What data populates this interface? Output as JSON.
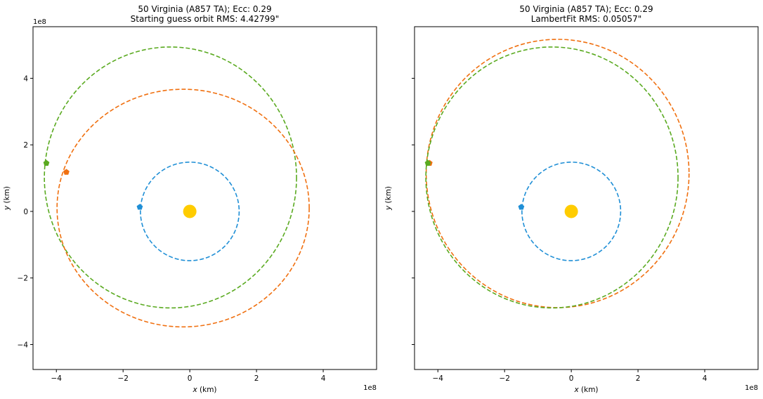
{
  "chart_data": [
    {
      "type": "scatter",
      "title": "50 Virginia (A857 TA); Ecc: 0.29",
      "subtitle": "Starting guess orbit RMS: 4.42799\"",
      "xlabel": "x (km)",
      "ylabel": "y (km)",
      "xlim": [
        -4.7,
        5.6
      ],
      "ylim": [
        -4.75,
        5.55
      ],
      "x_offset_label": "1e8",
      "y_offset_label": "1e8",
      "x_ticks": [
        -4,
        -2,
        0,
        2,
        4
      ],
      "y_ticks": [
        -4,
        -2,
        0,
        2,
        4
      ],
      "x_tick_labels": [
        "−4",
        "−2",
        "0",
        "2",
        "4"
      ],
      "y_tick_labels": [
        "−4",
        "−2",
        "0",
        "2",
        "4"
      ],
      "grid": false,
      "sun": {
        "x": 0,
        "y": 0,
        "color": "#ffcc00"
      },
      "orbits": [
        {
          "color": "#1f8fd6",
          "cx": 0,
          "cy": 0,
          "rx": 1.48,
          "ry": 1.48,
          "marker": {
            "x": -1.5,
            "y": 0.13,
            "shape": "pentagon"
          }
        },
        {
          "color": "#5aaa20",
          "cx": -0.58,
          "cy": 1.02,
          "rx": 3.78,
          "ry": 3.92,
          "marker": {
            "x": -4.3,
            "y": 1.45,
            "shape": "pentagon"
          }
        },
        {
          "color": "#f07010",
          "cx": -0.2,
          "cy": 0.1,
          "rx": 3.78,
          "ry": 3.57,
          "marker": {
            "x": -3.7,
            "y": 1.18,
            "shape": "pentagon"
          }
        }
      ]
    },
    {
      "type": "scatter",
      "title": "50 Virginia (A857 TA); Ecc: 0.29",
      "subtitle": "LambertFit RMS: 0.05057\"",
      "xlabel": "x (km)",
      "ylabel": "y (km)",
      "xlim": [
        -4.7,
        5.6
      ],
      "ylim": [
        -4.75,
        5.55
      ],
      "x_offset_label": "1e8",
      "x_ticks": [
        -4,
        -2,
        0,
        2,
        4
      ],
      "y_ticks": [
        -4,
        -2,
        0,
        2,
        4
      ],
      "x_tick_labels": [
        "−4",
        "−2",
        "0",
        "2",
        "4"
      ],
      "y_tick_labels": [],
      "grid": false,
      "sun": {
        "x": 0,
        "y": 0,
        "color": "#ffcc00"
      },
      "orbits": [
        {
          "color": "#1f8fd6",
          "cx": 0,
          "cy": 0,
          "rx": 1.48,
          "ry": 1.48,
          "marker": {
            "x": -1.5,
            "y": 0.13,
            "shape": "pentagon"
          }
        },
        {
          "color": "#f07010",
          "cx": -0.41,
          "cy": 1.14,
          "rx": 3.94,
          "ry": 4.03,
          "marker": {
            "x": -4.25,
            "y": 1.45,
            "shape": "pentagon"
          }
        },
        {
          "color": "#5aaa20",
          "cx": -0.58,
          "cy": 1.02,
          "rx": 3.78,
          "ry": 3.92,
          "marker": {
            "x": -4.3,
            "y": 1.45,
            "shape": "pentagon"
          }
        }
      ]
    }
  ]
}
